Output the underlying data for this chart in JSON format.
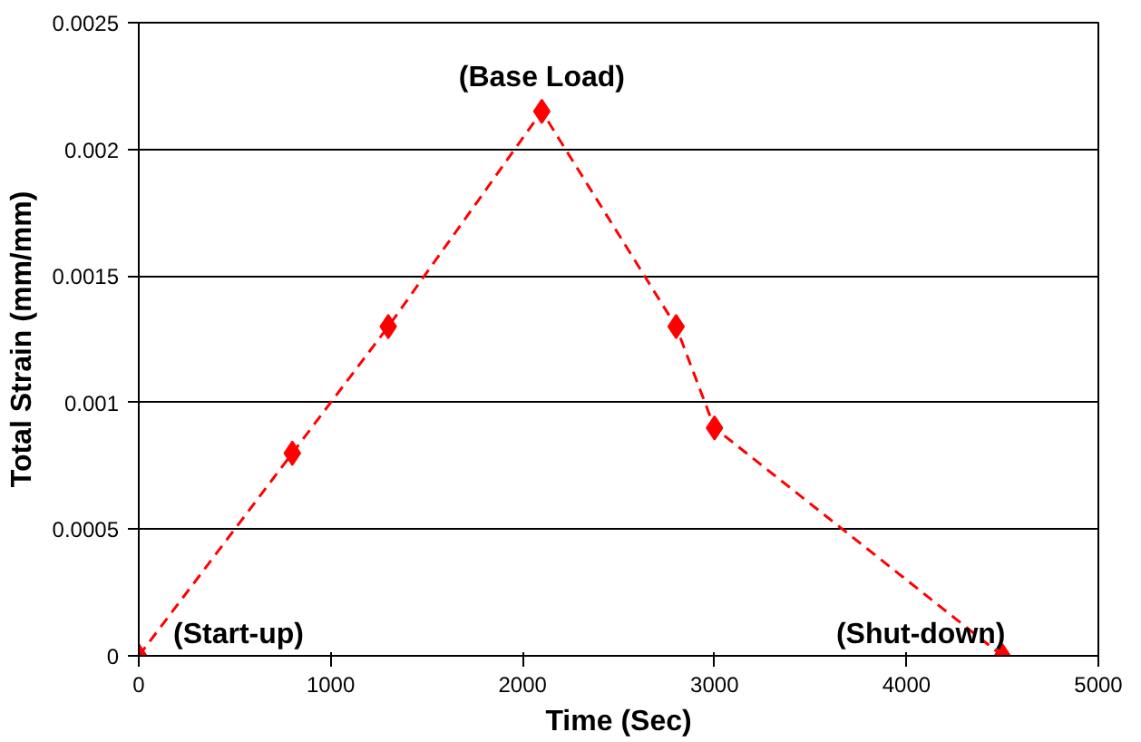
{
  "chart_data": {
    "type": "line",
    "xlabel": "Time (Sec)",
    "ylabel": "Total Strain (mm/mm)",
    "x": [
      0,
      800,
      1300,
      2100,
      2800,
      3000,
      4500
    ],
    "series": [
      {
        "color": "#ff0000",
        "values": [
          0,
          0.0008,
          0.0013,
          0.00215,
          0.0013,
          0.0009,
          0
        ]
      }
    ],
    "xlim": [
      0,
      5000
    ],
    "xticks": [
      0,
      1000,
      2000,
      3000,
      4000,
      5000
    ],
    "ylim": [
      0,
      0.0025
    ],
    "yticks": [
      0,
      0.0005,
      0.001,
      0.0015,
      0.002,
      0.0025
    ],
    "grid": "y",
    "marker": "diamond",
    "line_style": "dashed",
    "annotations": [
      {
        "text": "(Base Load)",
        "x": 2100,
        "y": 0.00215
      },
      {
        "text": "(Start-up)",
        "x": 0,
        "y": 0
      },
      {
        "text": "(Shut-down)",
        "x": 4500,
        "y": 0
      }
    ]
  }
}
